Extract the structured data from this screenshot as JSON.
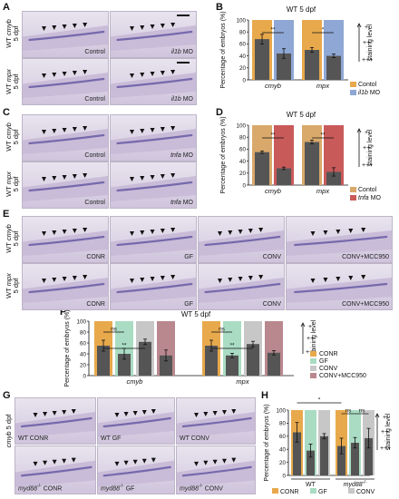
{
  "panel_labels": {
    "A": "A",
    "B": "B",
    "C": "C",
    "D": "D",
    "E": "E",
    "F": "F",
    "G": "G",
    "H": "H"
  },
  "panelA": {
    "rows": [
      {
        "label_gene": "cmyb",
        "label_prefix": "WT ",
        "label_sub": "5 dpf"
      },
      {
        "label_gene": "mpx",
        "label_prefix": "WT ",
        "label_sub": "5 dpf"
      }
    ],
    "captions": {
      "control": "Control",
      "mo_gene": "il1b",
      "mo_suffix": " MO"
    }
  },
  "panelC": {
    "rows": [
      {
        "label_gene": "cmyb",
        "label_prefix": "WT ",
        "label_sub": "5 dpf"
      },
      {
        "label_gene": "mpx",
        "label_prefix": "WT ",
        "label_sub": "5 dpf"
      }
    ],
    "captions": {
      "control": "Control",
      "mo_gene": "tnfa",
      "mo_suffix": " MO"
    }
  },
  "panelE": {
    "rows": [
      {
        "label_gene": "cmyb",
        "label_prefix": "WT ",
        "label_sub": "5 dpf"
      },
      {
        "label_gene": "mpx",
        "label_prefix": "WT ",
        "label_sub": "5 dpf"
      }
    ],
    "captions": [
      "CONR",
      "GF",
      "CONV",
      "CONV+MCC950"
    ]
  },
  "panelG": {
    "side_gene": "cmyb",
    "side_suffix": " 5 dpf",
    "captions": [
      [
        "WT CONR",
        "WT GF",
        "WT CONV"
      ],
      [
        "myd88",
        "myd88",
        "myd88"
      ]
    ],
    "mut_suffix": [
      "CONR",
      "GF",
      "CONV"
    ],
    "mut_sup": "-/-"
  },
  "colors": {
    "orange": "#e8a94c",
    "blue": "#8fa7d4",
    "red": "#c95a5a",
    "tan": "#d9a96b",
    "mint": "#a9dcc3",
    "gray": "#c7c7c7",
    "mauve": "#b9888e",
    "bar": "#555555"
  },
  "staining_legend": {
    "label": "staining level",
    "plus1": "+",
    "plus2": "++",
    "plus3": "+++"
  },
  "chart_data": [
    {
      "id": "B",
      "type": "bar",
      "title": "WT 5 dpf",
      "ylabel": "Percentage of embryos (%)",
      "ylim": [
        0,
        100
      ],
      "yticks": [
        "0",
        "20",
        "40",
        "60",
        "80",
        "100"
      ],
      "categories": [
        "cmyb",
        "mpx"
      ],
      "series": [
        {
          "name": "Contol",
          "values": [
            68,
            50
          ],
          "err": [
            8,
            4
          ]
        },
        {
          "name": "il1b MO",
          "values": [
            44,
            40
          ],
          "err": [
            8,
            3
          ]
        }
      ],
      "legend": [
        {
          "name": "Contol",
          "italic": false
        },
        {
          "name": "il1b",
          "italic": true,
          "suffix": " MO"
        }
      ],
      "sig": [
        "**",
        "*"
      ]
    },
    {
      "id": "D",
      "type": "bar",
      "title": "WT 5 dpf",
      "ylabel": "Percentage of embryos (%)",
      "ylim": [
        0,
        100
      ],
      "yticks": [
        "0",
        "20",
        "40",
        "60",
        "80",
        "100"
      ],
      "categories": [
        "cmyb",
        "mpx"
      ],
      "series": [
        {
          "name": "Contol",
          "values": [
            55,
            72
          ],
          "err": [
            2,
            3
          ]
        },
        {
          "name": "tnfa MO",
          "values": [
            28,
            22
          ],
          "err": [
            2,
            7
          ]
        }
      ],
      "legend": [
        {
          "name": "Contol",
          "italic": false
        },
        {
          "name": "tnfa",
          "italic": true,
          "suffix": " MO"
        }
      ],
      "sig": [
        "**",
        "**"
      ]
    },
    {
      "id": "F",
      "type": "bar",
      "title": "WT 5 dpf",
      "ylabel": "Percentage of embryos (%)",
      "ylim": [
        0,
        100
      ],
      "yticks": [
        "0",
        "20",
        "40",
        "60",
        "80",
        "100"
      ],
      "categories": [
        "cmyb",
        "mpx"
      ],
      "series": [
        {
          "name": "CONR",
          "values": [
            55,
            55
          ],
          "err": [
            10,
            10
          ]
        },
        {
          "name": "GF",
          "values": [
            40,
            37
          ],
          "err": [
            10,
            4
          ]
        },
        {
          "name": "CONV",
          "values": [
            62,
            58
          ],
          "err": [
            5,
            5
          ]
        },
        {
          "name": "CONV+MCC950",
          "values": [
            37,
            42
          ],
          "err": [
            10,
            4
          ]
        }
      ],
      "legend": [
        {
          "name": "CONR"
        },
        {
          "name": "GF"
        },
        {
          "name": "CONV"
        },
        {
          "name": "CONV+MCC950"
        }
      ],
      "sig_ns": "ns",
      "sig": "**"
    },
    {
      "id": "H",
      "type": "bar",
      "ylabel": "Percentage of embryos (%)",
      "ylim": [
        0,
        100
      ],
      "yticks": [
        "0",
        "20",
        "40",
        "60",
        "80",
        "100"
      ],
      "categories": [
        "WT",
        "myd88-/-"
      ],
      "cat_labels": [
        {
          "text": "WT",
          "italic": false
        },
        {
          "text": "myd88",
          "italic": true,
          "sup": "-/-"
        }
      ],
      "series": [
        {
          "name": "CONR",
          "values": [
            66,
            45
          ],
          "err": [
            15,
            12
          ]
        },
        {
          "name": "GF",
          "values": [
            38,
            50
          ],
          "err": [
            10,
            8
          ]
        },
        {
          "name": "CONV",
          "values": [
            60,
            57
          ],
          "err": [
            4,
            15
          ]
        }
      ],
      "legend": [
        {
          "name": "CONR"
        },
        {
          "name": "GF"
        },
        {
          "name": "CONV"
        }
      ],
      "sig": "*",
      "sig_ns": "ns"
    }
  ]
}
